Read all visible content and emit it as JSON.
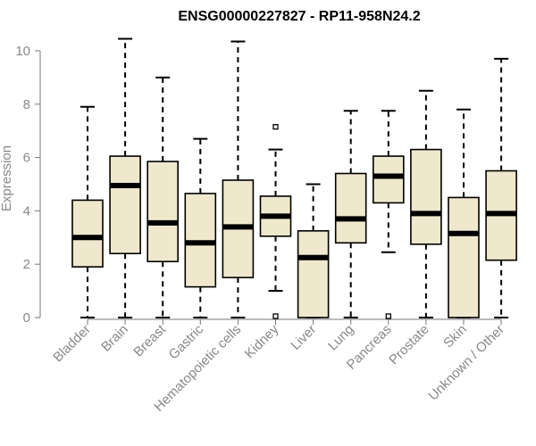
{
  "chart_data": {
    "type": "boxplot",
    "title": "ENSG00000227827 - RP11-958N24.2",
    "xlabel": "",
    "ylabel": "Expression",
    "ylim": [
      0,
      10.5
    ],
    "yticks": [
      0,
      2,
      4,
      6,
      8,
      10
    ],
    "grid": false,
    "box_color": "#efe8cc",
    "categories": [
      "Bladder",
      "Brain",
      "Breast",
      "Gastric",
      "Hematopoietic cells",
      "Kidney",
      "Liver",
      "Lung",
      "Pancreas",
      "Prostate",
      "Skin",
      "Unknown / Other"
    ],
    "boxes": [
      {
        "min": 0,
        "q1": 1.9,
        "median": 3.0,
        "q3": 4.4,
        "max": 7.9,
        "outliers": []
      },
      {
        "min": 0,
        "q1": 2.4,
        "median": 4.95,
        "q3": 6.05,
        "max": 10.45,
        "outliers": []
      },
      {
        "min": 0,
        "q1": 2.1,
        "median": 3.55,
        "q3": 5.85,
        "max": 9.0,
        "outliers": []
      },
      {
        "min": 0,
        "q1": 1.15,
        "median": 2.8,
        "q3": 4.65,
        "max": 6.7,
        "outliers": []
      },
      {
        "min": 0,
        "q1": 1.5,
        "median": 3.4,
        "q3": 5.15,
        "max": 10.35,
        "outliers": []
      },
      {
        "min": 1.0,
        "q1": 3.05,
        "median": 3.8,
        "q3": 4.55,
        "max": 6.3,
        "outliers": [
          7.15,
          0.05
        ]
      },
      {
        "min": 0,
        "q1": 0,
        "median": 2.25,
        "q3": 3.25,
        "max": 5.0,
        "outliers": []
      },
      {
        "min": 0,
        "q1": 2.8,
        "median": 3.7,
        "q3": 5.4,
        "max": 7.75,
        "outliers": []
      },
      {
        "min": 2.45,
        "q1": 4.3,
        "median": 5.3,
        "q3": 6.05,
        "max": 7.75,
        "outliers": [
          0.05
        ]
      },
      {
        "min": 0,
        "q1": 2.75,
        "median": 3.9,
        "q3": 6.3,
        "max": 8.5,
        "outliers": []
      },
      {
        "min": 0,
        "q1": 0,
        "median": 3.15,
        "q3": 4.5,
        "max": 7.8,
        "outliers": []
      },
      {
        "min": 0,
        "q1": 2.15,
        "median": 3.9,
        "q3": 5.5,
        "max": 9.7,
        "outliers": []
      }
    ]
  }
}
